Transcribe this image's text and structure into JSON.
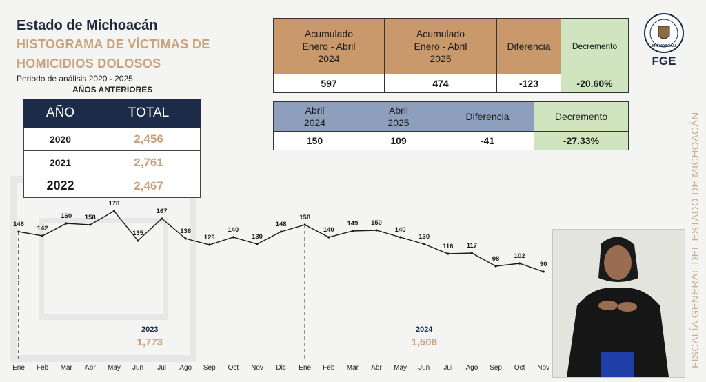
{
  "header": {
    "state": "Estado de Michoacán",
    "title_line1": "HISTOGRAMA DE VÍCTIMAS DE",
    "title_line2": "HOMICIDIOS DOLOSOS",
    "period": "Periodo de análisis 2020 - 2025"
  },
  "previous_years": {
    "label": "AÑOS ANTERIORES",
    "col_year": "AÑO",
    "col_total": "TOTAL",
    "rows": [
      {
        "year": "2020",
        "total": "2,456"
      },
      {
        "year": "2021",
        "total": "2,761"
      },
      {
        "year": "2022",
        "total": "2,467"
      }
    ]
  },
  "comparison_cumulative": {
    "h1_l1": "Acumulado",
    "h1_l2": "Enero - Abril",
    "h1_l3": "2024",
    "h2_l1": "Acumulado",
    "h2_l2": "Enero - Abril",
    "h2_l3": "2025",
    "h3": "Diferencia",
    "h4": "Decremento",
    "v1": "597",
    "v2": "474",
    "v3": "-123",
    "v4": "-20.60%"
  },
  "comparison_april": {
    "h1_l1": "Abril",
    "h1_l2": "2024",
    "h2_l1": "Abril",
    "h2_l2": "2025",
    "h3": "Diferencia",
    "h4": "Decremento",
    "v1": "150",
    "v2": "109",
    "v3": "-41",
    "v4": "-27.33%"
  },
  "logo": {
    "line1": "MICHOACÁN",
    "line2": "FGE",
    "ring": "FISCALÍA GENERAL DEL ESTADO"
  },
  "vertical_text": "FISCALÍA GENERAL DEL ESTADO DE MICHOACÁN",
  "colors": {
    "navy": "#1c2c48",
    "tan": "#c9996b",
    "gold": "#c9a27d",
    "blue_grey": "#8d9fbc",
    "green": "#cfe4bf"
  },
  "chart_data": {
    "type": "line",
    "categories": [
      "Ene",
      "Feb",
      "Mar",
      "Abr",
      "May",
      "Jun",
      "Jul",
      "Ago",
      "Sep",
      "Oct",
      "Nov",
      "Dic",
      "Ene",
      "Feb",
      "Mar",
      "Abr",
      "May",
      "Jun",
      "Jul",
      "Ago",
      "Sep",
      "Oct",
      "Nov"
    ],
    "values": [
      148,
      142,
      160,
      158,
      178,
      135,
      167,
      138,
      129,
      140,
      130,
      148,
      158,
      140,
      149,
      150,
      140,
      130,
      116,
      117,
      98,
      102,
      90
    ],
    "period_labels": [
      {
        "year": "2023",
        "total": "1,773",
        "start_index": 0
      },
      {
        "year": "2024",
        "total": "1,508",
        "start_index": 12
      }
    ],
    "grid": false
  }
}
